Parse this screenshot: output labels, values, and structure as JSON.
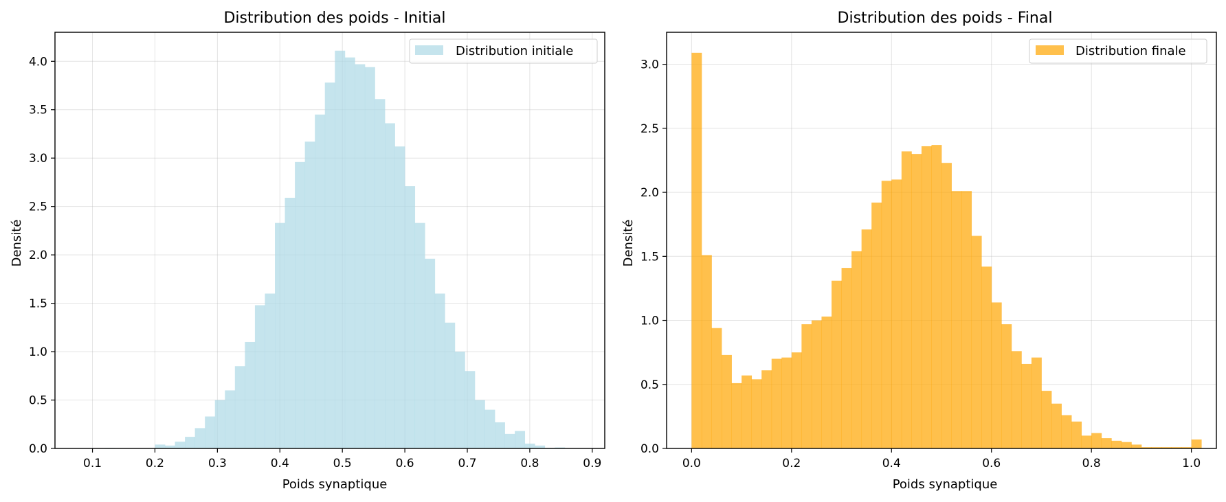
{
  "chart_data": [
    {
      "type": "bar",
      "histogram": true,
      "title": "Distribution des poids - Initial",
      "xlabel": "Poids synaptique",
      "ylabel": "Densité",
      "xlim": [
        0.04,
        0.92
      ],
      "ylim": [
        0,
        4.3
      ],
      "xticks": [
        0.1,
        0.2,
        0.3,
        0.4,
        0.5,
        0.6,
        0.7,
        0.8,
        0.9
      ],
      "xtick_labels": [
        "0.1",
        "0.2",
        "0.3",
        "0.4",
        "0.5",
        "0.6",
        "0.7",
        "0.8",
        "0.9"
      ],
      "yticks": [
        0.0,
        0.5,
        1.0,
        1.5,
        2.0,
        2.5,
        3.0,
        3.5,
        4.0
      ],
      "ytick_labels": [
        "0.0",
        "0.5",
        "1.0",
        "1.5",
        "2.0",
        "2.5",
        "3.0",
        "3.5",
        "4.0"
      ],
      "grid": true,
      "legend_position": "top-right",
      "series": [
        {
          "name": "Distribution initiale",
          "color": "#add8e6",
          "opacity": 0.7,
          "bin_start": 0.088,
          "bin_width": 0.016,
          "values": [
            0.003,
            0.003,
            0.005,
            0.003,
            0.003,
            0.003,
            0.003,
            0.04,
            0.03,
            0.07,
            0.12,
            0.21,
            0.33,
            0.5,
            0.6,
            0.85,
            1.1,
            1.48,
            1.6,
            2.33,
            2.59,
            2.96,
            3.17,
            3.45,
            3.78,
            4.11,
            4.04,
            3.97,
            3.94,
            3.61,
            3.36,
            3.12,
            2.71,
            2.33,
            1.96,
            1.6,
            1.3,
            1.0,
            0.8,
            0.5,
            0.4,
            0.27,
            0.15,
            0.18,
            0.05,
            0.03,
            0.006,
            0.01,
            0.003,
            0.003,
            0.003
          ]
        }
      ]
    },
    {
      "type": "bar",
      "histogram": true,
      "title": "Distribution des poids - Final",
      "xlabel": "Poids synaptique",
      "ylabel": "Densité",
      "xlim": [
        -0.05,
        1.05
      ],
      "ylim": [
        0,
        3.25
      ],
      "xticks": [
        0.0,
        0.2,
        0.4,
        0.6,
        0.8,
        1.0
      ],
      "xtick_labels": [
        "0.0",
        "0.2",
        "0.4",
        "0.6",
        "0.8",
        "1.0"
      ],
      "yticks": [
        0.0,
        0.5,
        1.0,
        1.5,
        2.0,
        2.5,
        3.0
      ],
      "ytick_labels": [
        "0.0",
        "0.5",
        "1.0",
        "1.5",
        "2.0",
        "2.5",
        "3.0"
      ],
      "grid": true,
      "legend_position": "top-right",
      "series": [
        {
          "name": "Distribution finale",
          "color": "#ffa500",
          "opacity": 0.7,
          "bin_start": 0.0,
          "bin_width": 0.02,
          "values": [
            3.09,
            1.51,
            0.94,
            0.73,
            0.51,
            0.57,
            0.54,
            0.61,
            0.7,
            0.71,
            0.75,
            0.97,
            1.0,
            1.03,
            1.31,
            1.41,
            1.54,
            1.71,
            1.92,
            2.09,
            2.1,
            2.32,
            2.3,
            2.36,
            2.37,
            2.23,
            2.01,
            2.01,
            1.66,
            1.42,
            1.14,
            0.97,
            0.76,
            0.66,
            0.71,
            0.45,
            0.35,
            0.26,
            0.21,
            0.1,
            0.12,
            0.08,
            0.06,
            0.05,
            0.03,
            0.01,
            0.01,
            0.01,
            0.01,
            0.01,
            0.07
          ]
        }
      ]
    }
  ]
}
